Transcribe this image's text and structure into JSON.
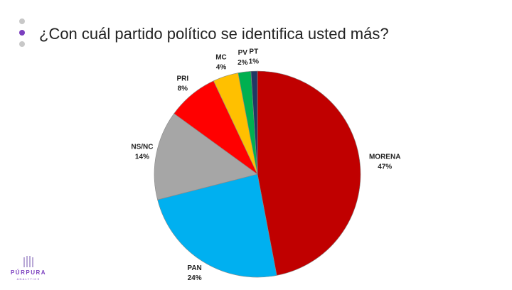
{
  "chart_data": {
    "type": "pie",
    "title": "¿Con cuál partido político se identifica usted más?",
    "categories": [
      "MORENA",
      "PAN",
      "NS/NC",
      "PRI",
      "MC",
      "PV",
      "PT"
    ],
    "values": [
      47,
      24,
      14,
      8,
      4,
      2,
      1
    ],
    "value_labels": [
      "47%",
      "24%",
      "14%",
      "8%",
      "4%",
      "2%",
      "1%"
    ],
    "colors": [
      "#c00000",
      "#00b0f0",
      "#a6a6a6",
      "#ff0000",
      "#ffc000",
      "#00b050",
      "#203864"
    ]
  },
  "logo": {
    "name": "PÚRPURA",
    "tagline": "ANALYTICS"
  }
}
